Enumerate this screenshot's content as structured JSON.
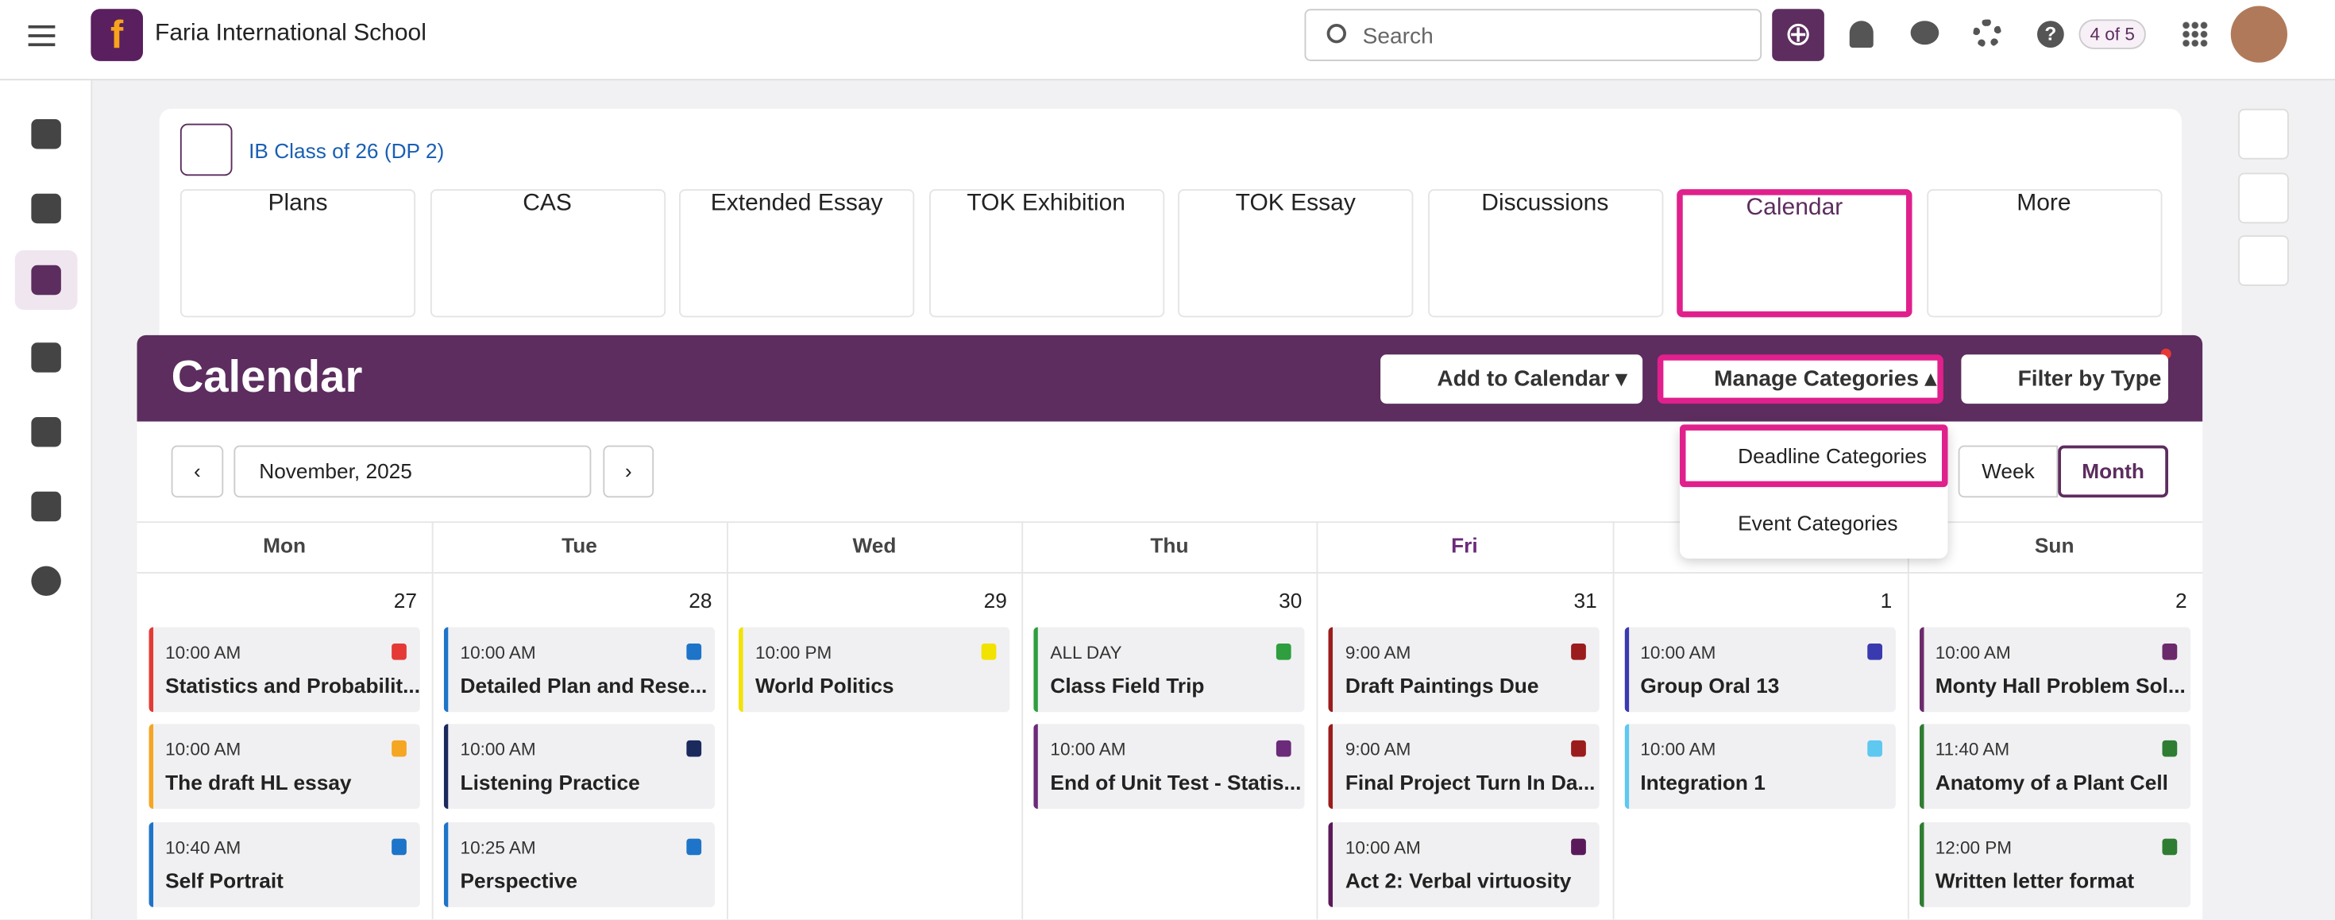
{
  "header": {
    "school": "Faria International School",
    "search_placeholder": "Search",
    "counter": "4 of 5"
  },
  "class_link": "IB Class of 26 (DP 2)",
  "tiles": [
    "Plans",
    "CAS",
    "Extended Essay",
    "TOK Exhibition",
    "TOK Essay",
    "Discussions",
    "Calendar",
    "More"
  ],
  "calendar": {
    "title": "Calendar",
    "buttons": {
      "add": "Add to Calendar",
      "manage": "Manage Categories",
      "filter": "Filter by Type"
    },
    "month": "November, 2025",
    "views": [
      "Week",
      "Month"
    ],
    "dropdown": [
      "Deadline Categories",
      "Event Categories"
    ],
    "days": [
      {
        "name": "Mon",
        "date": "27",
        "events": [
          {
            "time": "10:00 AM",
            "title": "Statistics and Probabilit...",
            "color": "#e53935"
          },
          {
            "time": "10:00 AM",
            "title": "The draft HL essay",
            "color": "#f5a623"
          },
          {
            "time": "10:40 AM",
            "title": "Self Portrait",
            "color": "#1e74c8"
          }
        ]
      },
      {
        "name": "Tue",
        "date": "28",
        "events": [
          {
            "time": "10:00 AM",
            "title": "Detailed Plan and Rese...",
            "color": "#1e74c8"
          },
          {
            "time": "10:00 AM",
            "title": "Listening Practice",
            "color": "#1b2a5c"
          },
          {
            "time": "10:25 AM",
            "title": "Perspective",
            "color": "#1e74c8"
          }
        ]
      },
      {
        "name": "Wed",
        "date": "29",
        "events": [
          {
            "time": "10:00 PM",
            "title": "World Politics",
            "color": "#f2e200"
          }
        ]
      },
      {
        "name": "Thu",
        "date": "30",
        "events": [
          {
            "time": "ALL DAY",
            "title": "Class Field Trip",
            "color": "#2e9e3e"
          },
          {
            "time": "10:00 AM",
            "title": "End of Unit Test - Statis...",
            "color": "#6b2a7a"
          }
        ]
      },
      {
        "name": "Fri",
        "date": "31",
        "events": [
          {
            "time": "9:00 AM",
            "title": "Draft Paintings Due",
            "color": "#9b1c1c"
          },
          {
            "time": "9:00 AM",
            "title": "Final Project Turn In Da...",
            "color": "#9b1c1c"
          },
          {
            "time": "10:00 AM",
            "title": "Act 2: Verbal virtuosity",
            "color": "#5a1a5a"
          }
        ]
      },
      {
        "date": "1",
        "events": [
          {
            "time": "10:00 AM",
            "title": "Group Oral 13",
            "color": "#3a3ab0"
          },
          {
            "time": "10:00 AM",
            "title": "Integration 1",
            "color": "#5ec8f0"
          }
        ]
      },
      {
        "name": "Sun",
        "date": "2",
        "events": [
          {
            "time": "10:00 AM",
            "title": "Monty Hall Problem Sol...",
            "color": "#6b2a6b"
          },
          {
            "time": "11:40 AM",
            "title": "Anatomy of a Plant Cell",
            "color": "#2e7d32"
          },
          {
            "time": "12:00 PM",
            "title": "Written letter format",
            "color": "#2e7d32"
          }
        ]
      }
    ]
  }
}
